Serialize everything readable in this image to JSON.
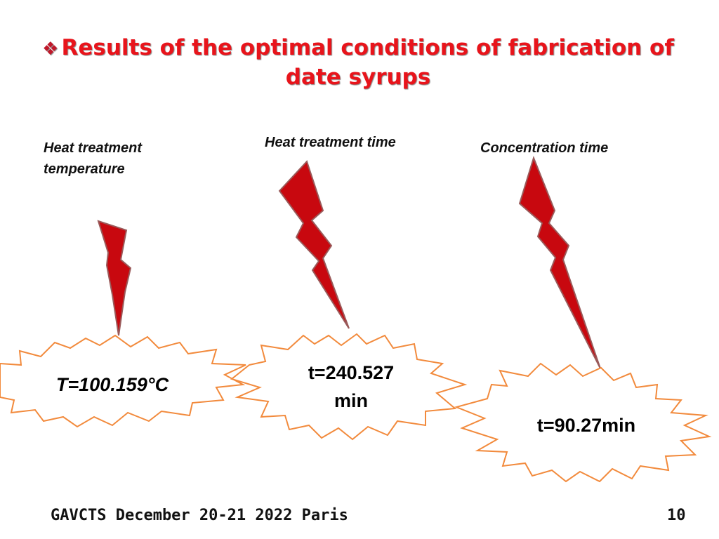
{
  "title": {
    "bullet": "❖",
    "text": "Results of the optimal conditions of fabrication of date syrups"
  },
  "parameters": [
    {
      "label_lines": [
        "Heat treatment",
        "temperature"
      ],
      "value_lines": [
        "T=100.159°C"
      ]
    },
    {
      "label_lines": [
        "Heat treatment time"
      ],
      "value_lines": [
        "t=240.527",
        "min"
      ]
    },
    {
      "label_lines": [
        "Concentration time"
      ],
      "value_lines": [
        "t=90.27min"
      ]
    }
  ],
  "footer": {
    "event": "GAVCTS December 20-21 2022 Paris",
    "page_number": "10"
  },
  "colors": {
    "title": "#e8141b",
    "bolt_fill": "#c8080f",
    "starburst_outline": "#f28a3c"
  }
}
